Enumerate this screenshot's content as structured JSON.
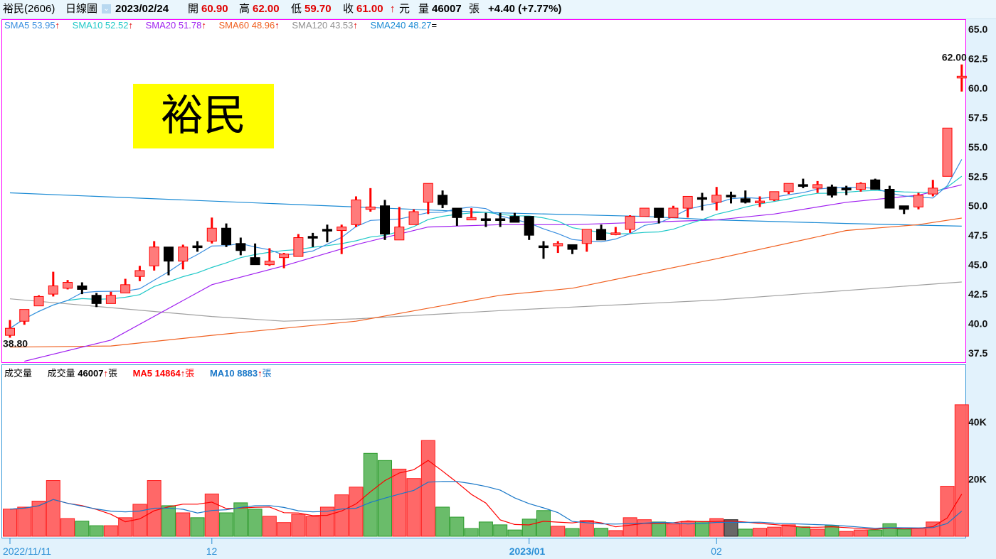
{
  "header": {
    "stock": "裕民(2606)",
    "chart_type": "日線圖",
    "date": "2023/02/24",
    "open_label": "開",
    "open": "60.90",
    "high_label": "高",
    "high": "62.00",
    "low_label": "低",
    "low": "59.70",
    "close_label": "收",
    "close": "61.00",
    "close_arrow": "↑",
    "unit": "元",
    "volume_label": "量",
    "volume": "46007",
    "volume_unit": "張",
    "change": "+4.40 (+7.77%)"
  },
  "ma_legend": [
    {
      "label": "SMA5 53.95",
      "arrow": "↑",
      "color": "#3b8fe0"
    },
    {
      "label": "SMA10 52.52",
      "arrow": "↑",
      "color": "#1ec8c8"
    },
    {
      "label": "SMA20 51.78",
      "arrow": "↑",
      "color": "#a020f0"
    },
    {
      "label": "SMA60 48.96",
      "arrow": "↑",
      "color": "#f06020"
    },
    {
      "label": "SMA120 43.53",
      "arrow": "↑",
      "color": "#909090"
    },
    {
      "label": "SMA240 48.27",
      "arrow": "=",
      "color": "#1a8ad4"
    }
  ],
  "volume_legend": {
    "title": "成交量",
    "vol_label": "成交量",
    "vol_value": "46007",
    "vol_arrow": "↑",
    "vol_unit": "張",
    "ma5_label": "MA5 14864",
    "ma5_arrow": "↑",
    "ma5_unit": "張",
    "ma10_label": "MA10 8883",
    "ma10_arrow": "↑",
    "ma10_unit": "張"
  },
  "stock_name_box": "裕民",
  "chart_data": [
    {
      "type": "candlestick",
      "ylim": [
        37.5,
        65.0
      ],
      "yticks": [
        "65.0",
        "62.5",
        "60.0",
        "57.5",
        "55.0",
        "52.5",
        "50.0",
        "47.5",
        "45.0",
        "42.5",
        "40.0",
        "37.5"
      ],
      "xtick_labels": [
        {
          "index": 0,
          "label": "2022/11/11"
        },
        {
          "index": 14,
          "label": "12"
        },
        {
          "index": 36,
          "label": "2023/01"
        },
        {
          "index": 49,
          "label": "02"
        }
      ],
      "high_annotation": "62.00",
      "low_annotation": "38.80",
      "colors": {
        "up": "#ff7b7b",
        "up_edge": "#ff0000",
        "down": "#000000"
      },
      "ohlc": [
        [
          39.0,
          40.3,
          38.8,
          39.6
        ],
        [
          40.2,
          41.2,
          39.9,
          41.2
        ],
        [
          41.5,
          42.4,
          41.5,
          42.3
        ],
        [
          42.5,
          44.4,
          42.3,
          43.2
        ],
        [
          43.0,
          43.7,
          42.9,
          43.5
        ],
        [
          43.2,
          43.5,
          42.5,
          42.9
        ],
        [
          42.4,
          42.6,
          41.4,
          41.7
        ],
        [
          41.7,
          42.7,
          41.7,
          42.4
        ],
        [
          42.6,
          43.8,
          42.6,
          43.3
        ],
        [
          44.0,
          44.9,
          43.6,
          44.5
        ],
        [
          44.9,
          47.0,
          44.5,
          46.5
        ],
        [
          46.5,
          46.5,
          44.1,
          45.3
        ],
        [
          45.3,
          46.7,
          44.6,
          46.5
        ],
        [
          46.6,
          47.0,
          46.1,
          46.5
        ],
        [
          47.0,
          49.0,
          46.8,
          48.1
        ],
        [
          48.1,
          48.5,
          46.5,
          46.7
        ],
        [
          46.8,
          47.3,
          45.8,
          46.2
        ],
        [
          45.6,
          46.8,
          45.0,
          45.0
        ],
        [
          45.0,
          46.4,
          44.9,
          45.3
        ],
        [
          45.6,
          46.0,
          44.7,
          45.9
        ],
        [
          45.7,
          47.6,
          45.7,
          47.3
        ],
        [
          47.4,
          47.7,
          46.5,
          47.3
        ],
        [
          48.0,
          48.4,
          46.9,
          47.9
        ],
        [
          47.9,
          48.4,
          45.9,
          48.2
        ],
        [
          48.4,
          50.8,
          48.2,
          50.5
        ],
        [
          49.7,
          51.5,
          49.5,
          49.9
        ],
        [
          50.0,
          50.5,
          47.1,
          47.6
        ],
        [
          47.1,
          49.9,
          47.1,
          48.2
        ],
        [
          48.4,
          49.7,
          48.4,
          49.5
        ],
        [
          50.3,
          51.9,
          49.3,
          51.9
        ],
        [
          50.9,
          51.3,
          49.8,
          50.1
        ],
        [
          49.8,
          49.8,
          48.3,
          49.0
        ],
        [
          48.8,
          49.8,
          48.8,
          49.0
        ],
        [
          48.9,
          49.4,
          48.2,
          48.8
        ],
        [
          48.9,
          49.4,
          48.2,
          48.8
        ],
        [
          49.1,
          49.4,
          48.6,
          48.6
        ],
        [
          49.1,
          49.1,
          47.1,
          47.5
        ],
        [
          46.6,
          47.0,
          45.5,
          46.5
        ],
        [
          46.6,
          47.0,
          46.0,
          46.8
        ],
        [
          46.7,
          46.7,
          45.9,
          46.3
        ],
        [
          46.8,
          48.0,
          46.1,
          48.0
        ],
        [
          48.0,
          48.4,
          47.1,
          47.1
        ],
        [
          47.6,
          48.2,
          47.5,
          47.7
        ],
        [
          48.0,
          49.2,
          47.7,
          49.1
        ],
        [
          49.1,
          49.8,
          49.1,
          49.8
        ],
        [
          49.8,
          49.8,
          48.5,
          49.0
        ],
        [
          49.0,
          50.0,
          49.0,
          49.8
        ],
        [
          49.8,
          50.8,
          49.0,
          50.8
        ],
        [
          50.7,
          51.1,
          49.6,
          50.6
        ],
        [
          50.3,
          51.6,
          49.6,
          50.9
        ],
        [
          50.9,
          51.2,
          50.2,
          50.9
        ],
        [
          50.6,
          51.3,
          50.2,
          50.3
        ],
        [
          50.3,
          50.8,
          49.9,
          50.4
        ],
        [
          50.5,
          51.2,
          50.4,
          51.2
        ],
        [
          51.2,
          51.9,
          51.0,
          51.9
        ],
        [
          51.8,
          52.3,
          51.5,
          51.8
        ],
        [
          51.5,
          52.1,
          51.1,
          51.8
        ],
        [
          51.6,
          51.8,
          50.7,
          50.9
        ],
        [
          51.5,
          51.7,
          50.9,
          51.4
        ],
        [
          51.4,
          52.0,
          51.2,
          51.9
        ],
        [
          52.2,
          52.3,
          51.4,
          51.4
        ],
        [
          51.4,
          51.7,
          49.8,
          49.8
        ],
        [
          50.0,
          50.0,
          49.3,
          49.7
        ],
        [
          49.9,
          51.1,
          49.7,
          50.9
        ],
        [
          51.0,
          52.2,
          50.8,
          51.5
        ],
        [
          52.5,
          56.6,
          52.5,
          56.6
        ],
        [
          60.9,
          62.0,
          59.7,
          61.0
        ]
      ],
      "ma_lines": {
        "sma5": {
          "color": "#3b8fe0",
          "period": 5
        },
        "sma10": {
          "color": "#1ec8c8",
          "period": 10
        },
        "sma20": {
          "color": "#a020f0",
          "points": [
            [
              1,
              36.8
            ],
            [
              7,
              38.6
            ],
            [
              14,
              43.3
            ],
            [
              19,
              44.9
            ],
            [
              24,
              46.7
            ],
            [
              29,
              48.2
            ],
            [
              34,
              48.4
            ],
            [
              39,
              48.4
            ],
            [
              44,
              48.6
            ],
            [
              49,
              48.8
            ],
            [
              53,
              49.3
            ],
            [
              58,
              50.3
            ],
            [
              63,
              50.9
            ],
            [
              66,
              51.78
            ]
          ]
        },
        "sma60": {
          "color": "#f06020",
          "points": [
            [
              0,
              38.0
            ],
            [
              7,
              38.1
            ],
            [
              14,
              39.0
            ],
            [
              24,
              40.2
            ],
            [
              34,
              42.4
            ],
            [
              39,
              43.0
            ],
            [
              49,
              45.5
            ],
            [
              58,
              47.9
            ],
            [
              63,
              48.4
            ],
            [
              66,
              48.96
            ]
          ]
        },
        "sma120": {
          "color": "#a0a0a0",
          "points": [
            [
              0,
              42.1
            ],
            [
              14,
              40.6
            ],
            [
              19,
              40.2
            ],
            [
              24,
              40.4
            ],
            [
              34,
              41.1
            ],
            [
              49,
              42.0
            ],
            [
              66,
              43.53
            ]
          ]
        },
        "sma240": {
          "color": "#1a8ad4",
          "points": [
            [
              0,
              51.1
            ],
            [
              24,
              49.9
            ],
            [
              34,
              49.4
            ],
            [
              44,
              49.1
            ],
            [
              49,
              48.8
            ],
            [
              58,
              48.5
            ],
            [
              66,
              48.27
            ]
          ]
        }
      }
    },
    {
      "type": "bar",
      "ylabel_ticks": [
        "40K",
        "20K"
      ],
      "ytick_values": [
        40,
        20
      ],
      "unit": "K",
      "volume_k": [
        9.5,
        10.2,
        12.3,
        19.5,
        6.2,
        5.3,
        3.7,
        3.7,
        6.5,
        11.2,
        19.5,
        10.7,
        8.2,
        6.5,
        14.8,
        8.2,
        11.7,
        9.5,
        7.0,
        4.8,
        7.7,
        7.0,
        10.2,
        14.5,
        17.2,
        29.0,
        26.5,
        23.5,
        20.2,
        33.5,
        10.2,
        6.7,
        2.7,
        5.0,
        4.0,
        2.2,
        6.0,
        9.0,
        3.5,
        2.7,
        5.5,
        2.8,
        2.0,
        6.5,
        5.8,
        5.0,
        4.3,
        5.2,
        5.2,
        6.2,
        5.8,
        2.5,
        2.8,
        3.2,
        4.0,
        3.3,
        2.5,
        3.7,
        1.7,
        2.2,
        2.2,
        4.4,
        2.5,
        2.7,
        5.0,
        17.5,
        46.0
      ],
      "bar_colors": "rrrrrggrrrrgrgrgggrrrrrrrggrrrggggggggrgrgrrrgrrgrkgrrrgrgrrgggrrrr",
      "color_map": {
        "r": "#ff6060",
        "g": "#62b862",
        "k": "#606060"
      },
      "ma_lines": {
        "ma5": {
          "color": "#ff0000",
          "period": 5
        },
        "ma10": {
          "color": "#1a78c8",
          "period": 10
        }
      }
    }
  ]
}
